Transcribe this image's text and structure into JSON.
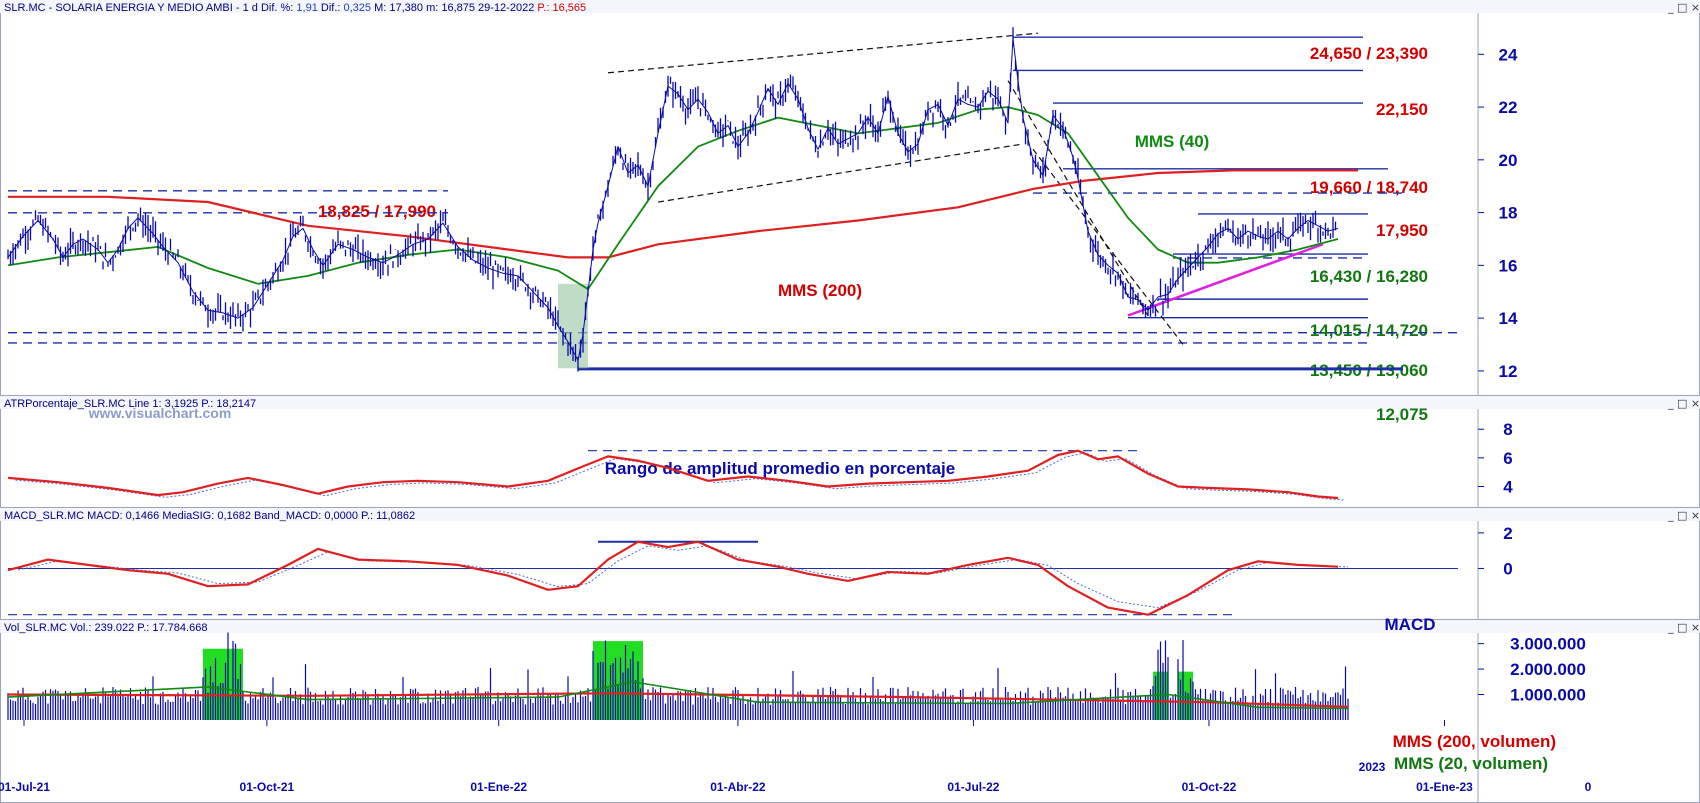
{
  "header": {
    "main": {
      "name": "SLR.MC - SOLARIA ENERGIA Y MEDIO AMBI - 1 d",
      "dif_pct_label": "Dif. %:",
      "dif_pct": "1,91",
      "dif_label": "Dif.:",
      "dif": "0,325",
      "max": "M: 17,380",
      "min": "m: 16,875",
      "date": "29-12-2022",
      "price": "P.: 16,565"
    },
    "atr": "ATRPorcentaje_SLR.MC  Line 1: 3,1925  P.: 18,2147",
    "macd": "MACD_SLR.MC  MACD: 0,1466  MediaSIG: 0,1682  Band_MACD: 0,0000  P.: 11,0862",
    "vol": "Vol_SLR.MC  Vol.: 239.022  P.: 17.784.668",
    "window_buttons": "_ □ ×"
  },
  "watermark": "www.visualchart.com",
  "colors": {
    "price": "#0a0aa8",
    "mms200": "#e02020",
    "mms40": "#118a11",
    "atr": "#e02020",
    "signal": "#4a6cd6",
    "magenta": "#e020e0",
    "volume_hi": "#22dd22",
    "level_red": "#d40000",
    "level_green": "#117711"
  },
  "chart_data": [
    {
      "type": "line",
      "panel": "price",
      "y_range": [
        11.2,
        25.3
      ],
      "y_ticks": [
        "24",
        "22",
        "20",
        "18",
        "16",
        "14",
        "12"
      ],
      "x_ticks": [
        "01-Jul-21",
        "01-Oct-21",
        "01-Ene-22",
        "01-Abr-22",
        "01-Jul-22",
        "01-Oct-22",
        "01-Ene-23"
      ],
      "x_tick_extra": "2023",
      "x_tick_extra2": "0",
      "price_series": {
        "name": "SLR.MC",
        "points": [
          [
            0,
            16.3
          ],
          [
            3,
            17.1
          ],
          [
            6,
            17.7
          ],
          [
            9,
            17.0
          ],
          [
            11,
            16.3
          ],
          [
            13,
            16.8
          ],
          [
            15,
            17.0
          ],
          [
            18,
            16.6
          ],
          [
            20,
            16.1
          ],
          [
            22,
            16.6
          ],
          [
            24,
            17.4
          ],
          [
            26,
            17.8
          ],
          [
            29,
            17.2
          ],
          [
            31,
            16.7
          ],
          [
            34,
            16.1
          ],
          [
            37,
            15.0
          ],
          [
            40,
            14.3
          ],
          [
            43,
            14.2
          ],
          [
            46,
            14.0
          ],
          [
            49,
            14.4
          ],
          [
            52,
            15.3
          ],
          [
            55,
            16.2
          ],
          [
            57,
            17.1
          ],
          [
            59,
            17.4
          ],
          [
            61,
            16.6
          ],
          [
            63,
            16.0
          ],
          [
            66,
            16.8
          ],
          [
            69,
            16.6
          ],
          [
            72,
            16.3
          ],
          [
            75,
            16.1
          ],
          [
            78,
            16.4
          ],
          [
            81,
            16.8
          ],
          [
            84,
            17.0
          ],
          [
            87,
            17.6
          ],
          [
            90,
            16.7
          ],
          [
            93,
            16.2
          ],
          [
            96,
            15.9
          ],
          [
            99,
            15.7
          ],
          [
            102,
            15.6
          ],
          [
            105,
            15.0
          ],
          [
            108,
            14.4
          ],
          [
            110,
            13.7
          ],
          [
            112,
            13.1
          ],
          [
            114,
            12.4
          ],
          [
            115,
            13.4
          ],
          [
            117,
            16.6
          ],
          [
            118,
            17.6
          ],
          [
            120,
            19.0
          ],
          [
            122,
            20.5
          ],
          [
            124,
            19.5
          ],
          [
            126,
            19.8
          ],
          [
            128,
            19.0
          ],
          [
            130,
            21.0
          ],
          [
            132,
            22.8
          ],
          [
            134,
            22.5
          ],
          [
            136,
            21.9
          ],
          [
            138,
            22.3
          ],
          [
            140,
            21.8
          ],
          [
            142,
            21.0
          ],
          [
            144,
            21.3
          ],
          [
            146,
            20.5
          ],
          [
            148,
            21.0
          ],
          [
            150,
            21.8
          ],
          [
            152,
            22.7
          ],
          [
            154,
            22.1
          ],
          [
            156,
            22.9
          ],
          [
            158,
            22.3
          ],
          [
            160,
            21.2
          ],
          [
            162,
            20.4
          ],
          [
            164,
            21.2
          ],
          [
            166,
            20.6
          ],
          [
            168,
            20.8
          ],
          [
            170,
            21.0
          ],
          [
            172,
            21.6
          ],
          [
            174,
            21.0
          ],
          [
            176,
            22.4
          ],
          [
            178,
            21.0
          ],
          [
            180,
            20.3
          ],
          [
            182,
            20.6
          ],
          [
            184,
            21.9
          ],
          [
            186,
            22.1
          ],
          [
            188,
            21.3
          ],
          [
            190,
            22.3
          ],
          [
            192,
            22.1
          ],
          [
            194,
            22.0
          ],
          [
            196,
            22.6
          ],
          [
            198,
            22.3
          ],
          [
            200,
            21.4
          ],
          [
            201,
            24.6
          ],
          [
            202,
            23.0
          ],
          [
            203,
            21.6
          ],
          [
            205,
            20.0
          ],
          [
            207,
            19.4
          ],
          [
            209,
            21.7
          ],
          [
            211,
            21.2
          ],
          [
            213,
            20.1
          ],
          [
            214,
            19.3
          ],
          [
            216,
            17.3
          ],
          [
            218,
            16.4
          ],
          [
            220,
            16.0
          ],
          [
            222,
            15.7
          ],
          [
            224,
            14.8
          ],
          [
            226,
            14.7
          ],
          [
            228,
            14.3
          ],
          [
            230,
            14.8
          ],
          [
            232,
            14.9
          ],
          [
            234,
            15.5
          ],
          [
            236,
            15.9
          ],
          [
            238,
            16.3
          ],
          [
            240,
            16.7
          ],
          [
            242,
            17.2
          ],
          [
            244,
            17.4
          ],
          [
            246,
            17.0
          ],
          [
            248,
            17.3
          ],
          [
            250,
            17.1
          ],
          [
            252,
            17.0
          ],
          [
            254,
            17.3
          ],
          [
            256,
            17.0
          ],
          [
            258,
            17.4
          ],
          [
            260,
            17.7
          ],
          [
            262,
            17.5
          ],
          [
            264,
            17.3
          ],
          [
            266,
            17.4
          ]
        ]
      },
      "mms40": {
        "name": "MMS (40)",
        "points": [
          [
            0,
            16.0
          ],
          [
            10,
            16.3
          ],
          [
            20,
            16.5
          ],
          [
            30,
            16.7
          ],
          [
            40,
            15.9
          ],
          [
            50,
            15.3
          ],
          [
            60,
            15.6
          ],
          [
            70,
            16.1
          ],
          [
            80,
            16.4
          ],
          [
            90,
            16.6
          ],
          [
            100,
            16.3
          ],
          [
            110,
            15.8
          ],
          [
            116,
            15.1
          ],
          [
            122,
            16.8
          ],
          [
            130,
            19.0
          ],
          [
            138,
            20.5
          ],
          [
            146,
            21.1
          ],
          [
            154,
            21.6
          ],
          [
            162,
            21.3
          ],
          [
            170,
            21.0
          ],
          [
            178,
            21.2
          ],
          [
            186,
            21.4
          ],
          [
            194,
            21.9
          ],
          [
            200,
            22.0
          ],
          [
            206,
            21.7
          ],
          [
            212,
            21.0
          ],
          [
            218,
            19.4
          ],
          [
            224,
            17.8
          ],
          [
            230,
            16.6
          ],
          [
            236,
            16.1
          ],
          [
            242,
            16.1
          ],
          [
            250,
            16.3
          ],
          [
            258,
            16.6
          ],
          [
            266,
            17.0
          ]
        ]
      },
      "mms200": {
        "name": "MMS (200)",
        "points": [
          [
            0,
            18.6
          ],
          [
            20,
            18.6
          ],
          [
            40,
            18.4
          ],
          [
            60,
            17.5
          ],
          [
            80,
            17.1
          ],
          [
            100,
            16.6
          ],
          [
            112,
            16.3
          ],
          [
            120,
            16.3
          ],
          [
            130,
            16.8
          ],
          [
            150,
            17.3
          ],
          [
            170,
            17.7
          ],
          [
            190,
            18.2
          ],
          [
            205,
            18.9
          ],
          [
            215,
            19.2
          ],
          [
            230,
            19.5
          ],
          [
            245,
            19.6
          ],
          [
            265,
            19.6
          ],
          [
            270,
            19.6
          ]
        ]
      },
      "levels": [
        {
          "label": "24,650 / 23,390",
          "color": "red"
        },
        {
          "label": "22,150",
          "color": "red"
        },
        {
          "label": "19,660 / 18,740",
          "color": "red"
        },
        {
          "label": "18,825 / 17,990",
          "color": "red"
        },
        {
          "label": "17,950",
          "color": "red"
        },
        {
          "label": "16,430 / 16,280",
          "color": "green"
        },
        {
          "label": "14,015  / 14,720",
          "color": "green"
        },
        {
          "label": "13,450 / 13,060",
          "color": "green"
        },
        {
          "label": "12,075",
          "color": "green"
        }
      ],
      "annotations": {
        "mms40": "MMS (40)",
        "mms200": "MMS (200)"
      }
    },
    {
      "type": "line",
      "panel": "atr",
      "title": "Rango de amplitud promedio en porcentaje",
      "y_range": [
        2.5,
        9.2
      ],
      "y_ticks": [
        "8",
        "6",
        "4"
      ],
      "series": [
        {
          "points": [
            [
              0,
              4.6
            ],
            [
              10,
              4.3
            ],
            [
              20,
              3.9
            ],
            [
              30,
              3.4
            ],
            [
              35,
              3.6
            ],
            [
              42,
              4.2
            ],
            [
              48,
              4.6
            ],
            [
              55,
              4.1
            ],
            [
              62,
              3.5
            ],
            [
              68,
              4.0
            ],
            [
              75,
              4.3
            ],
            [
              82,
              4.4
            ],
            [
              90,
              4.3
            ],
            [
              100,
              4.0
            ],
            [
              108,
              4.4
            ],
            [
              115,
              5.4
            ],
            [
              120,
              6.1
            ],
            [
              126,
              5.8
            ],
            [
              132,
              5.3
            ],
            [
              140,
              4.4
            ],
            [
              148,
              4.7
            ],
            [
              156,
              4.4
            ],
            [
              164,
              4.0
            ],
            [
              172,
              4.2
            ],
            [
              180,
              4.3
            ],
            [
              188,
              4.4
            ],
            [
              196,
              4.7
            ],
            [
              204,
              5.1
            ],
            [
              210,
              6.2
            ],
            [
              214,
              6.5
            ],
            [
              218,
              5.9
            ],
            [
              222,
              6.1
            ],
            [
              228,
              4.9
            ],
            [
              234,
              4.0
            ],
            [
              240,
              3.9
            ],
            [
              248,
              3.8
            ],
            [
              256,
              3.6
            ],
            [
              262,
              3.3
            ],
            [
              266,
              3.2
            ]
          ]
        }
      ]
    },
    {
      "type": "line",
      "panel": "macd",
      "title": "MACD",
      "y_range": [
        -2.9,
        2.5
      ],
      "y_ticks": [
        "2",
        "0"
      ],
      "series": [
        {
          "points": [
            [
              0,
              -0.1
            ],
            [
              8,
              0.5
            ],
            [
              16,
              0.2
            ],
            [
              24,
              -0.1
            ],
            [
              32,
              -0.3
            ],
            [
              40,
              -1.0
            ],
            [
              48,
              -0.9
            ],
            [
              56,
              0.2
            ],
            [
              62,
              1.1
            ],
            [
              70,
              0.5
            ],
            [
              80,
              0.4
            ],
            [
              90,
              0.2
            ],
            [
              100,
              -0.4
            ],
            [
              108,
              -1.2
            ],
            [
              114,
              -1.0
            ],
            [
              120,
              0.5
            ],
            [
              126,
              1.5
            ],
            [
              132,
              1.2
            ],
            [
              138,
              1.5
            ],
            [
              146,
              0.5
            ],
            [
              154,
              0.1
            ],
            [
              160,
              -0.3
            ],
            [
              168,
              -0.7
            ],
            [
              176,
              -0.2
            ],
            [
              184,
              -0.3
            ],
            [
              192,
              0.2
            ],
            [
              200,
              0.6
            ],
            [
              206,
              0.2
            ],
            [
              212,
              -1.0
            ],
            [
              220,
              -2.2
            ],
            [
              228,
              -2.6
            ],
            [
              236,
              -1.5
            ],
            [
              244,
              -0.1
            ],
            [
              250,
              0.4
            ],
            [
              258,
              0.2
            ],
            [
              266,
              0.1
            ]
          ]
        }
      ]
    },
    {
      "type": "bar",
      "panel": "volume",
      "y_range": [
        0,
        3300000
      ],
      "y_ticks": [
        "3.000.000",
        "2.000.000",
        "1.000.000"
      ],
      "annotations": {
        "mms200v": "MMS (200, volumen)",
        "mms20v": "MMS (20, volumen)"
      }
    }
  ]
}
